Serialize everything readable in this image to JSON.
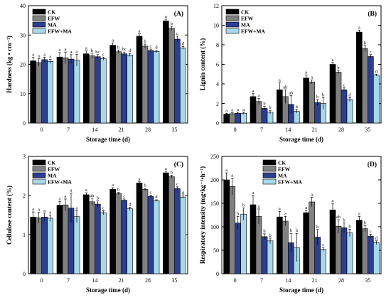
{
  "colors": {
    "CK": "#000000",
    "EFW": "#808080",
    "MA": "#2c3f8f",
    "EFW+MA": "#a8d8ea"
  },
  "chart_data": [
    {
      "type": "bar",
      "panel": "(A)",
      "legend_position": "top-left",
      "xlabel": "Storage time (d)",
      "ylabel": "Hardness (kg • cm⁻²)",
      "ylim": [
        0,
        40
      ],
      "yticks": [
        "0",
        "10",
        "20",
        "30",
        "40"
      ],
      "categories": [
        "0",
        "7",
        "14",
        "21",
        "28",
        "35"
      ],
      "series": [
        {
          "name": "CK",
          "values": [
            21.2,
            22.5,
            23.6,
            26.5,
            29.6,
            34.8
          ],
          "errors": [
            1.2,
            1.5,
            1.0,
            0.8,
            0.8,
            0.6
          ],
          "letters": [
            "a",
            "a",
            "a",
            "a",
            "a",
            "a"
          ]
        },
        {
          "name": "EFW",
          "values": [
            20.6,
            22.2,
            22.9,
            24.3,
            26.2,
            32.3
          ],
          "errors": [
            1.3,
            2.0,
            0.9,
            0.6,
            0.7,
            0.7
          ],
          "letters": [
            "a",
            "a",
            "b",
            "b",
            "b",
            "b"
          ]
        },
        {
          "name": "MA",
          "values": [
            21.6,
            21.8,
            22.6,
            23.6,
            24.7,
            28.6
          ],
          "errors": [
            0.8,
            1.5,
            0.7,
            0.6,
            0.5,
            1.0
          ],
          "letters": [
            "a",
            "a",
            "bc",
            "bc",
            "c",
            "c"
          ]
        },
        {
          "name": "EFW+MA",
          "values": [
            21.0,
            21.4,
            21.9,
            23.2,
            24.4,
            25.6
          ],
          "errors": [
            0.7,
            2.0,
            0.5,
            0.5,
            0.4,
            0.5
          ],
          "letters": [
            "a",
            "a",
            "c",
            "d",
            "d",
            "d"
          ]
        }
      ]
    },
    {
      "type": "bar",
      "panel": "(B)",
      "legend_position": "top-left",
      "xlabel": "Storage time (d)",
      "ylabel": "Lignin content (%)",
      "ylim": [
        0,
        12
      ],
      "yticks": [
        "0",
        "2",
        "4",
        "6",
        "8",
        "10",
        "12"
      ],
      "categories": [
        "0",
        "7",
        "14",
        "21",
        "28",
        "35"
      ],
      "series": [
        {
          "name": "CK",
          "values": [
            0.9,
            2.7,
            3.4,
            4.6,
            6.0,
            9.3
          ],
          "errors": [
            0.1,
            0.3,
            0.7,
            0.3,
            0.2,
            0.2
          ],
          "letters": [
            "a",
            "a",
            "a",
            "a",
            "a",
            "a"
          ]
        },
        {
          "name": "EFW",
          "values": [
            0.95,
            2.2,
            2.7,
            4.2,
            5.2,
            7.6
          ],
          "errors": [
            0.1,
            0.3,
            0.7,
            0.2,
            0.2,
            0.3
          ],
          "letters": [
            "a",
            "a",
            "ab",
            "a",
            "b",
            "b"
          ]
        },
        {
          "name": "MA",
          "values": [
            1.0,
            1.5,
            1.9,
            2.1,
            3.4,
            6.8
          ],
          "errors": [
            0.1,
            0.2,
            0.9,
            0.3,
            0.2,
            0.2
          ],
          "letters": [
            "a",
            "b",
            "ab",
            "b",
            "c",
            "c"
          ]
        },
        {
          "name": "EFW+MA",
          "values": [
            1.0,
            1.1,
            1.2,
            2.0,
            2.4,
            4.9
          ],
          "errors": [
            0.1,
            0.2,
            0.2,
            0.6,
            0.2,
            0.1
          ],
          "letters": [
            "a",
            "b",
            "b",
            "b",
            "d",
            "d"
          ]
        }
      ]
    },
    {
      "type": "bar",
      "panel": "(C)",
      "legend_position": "top-left",
      "xlabel": "Storage time (d)",
      "ylabel": "Cellulose content (%)",
      "ylim": [
        0,
        3
      ],
      "yticks": [
        "0",
        "1",
        "2",
        "3"
      ],
      "categories": [
        "0",
        "7",
        "14",
        "21",
        "28",
        "35"
      ],
      "series": [
        {
          "name": "CK",
          "values": [
            1.45,
            1.75,
            2.02,
            2.16,
            2.32,
            2.58
          ],
          "errors": [
            0.13,
            0.1,
            0.05,
            0.04,
            0.03,
            0.04
          ],
          "letters": [
            "a",
            "a",
            "a",
            "a",
            "a",
            "a"
          ]
        },
        {
          "name": "EFW",
          "values": [
            1.43,
            1.76,
            1.84,
            2.05,
            2.16,
            2.48
          ],
          "errors": [
            0.14,
            0.15,
            0.09,
            0.03,
            0.03,
            0.04
          ],
          "letters": [
            "a",
            "a",
            "ab",
            "b",
            "b",
            "b"
          ]
        },
        {
          "name": "MA",
          "values": [
            1.45,
            1.68,
            1.78,
            1.88,
            1.98,
            2.18
          ],
          "errors": [
            0.1,
            0.38,
            0.08,
            0.03,
            0.03,
            0.04
          ],
          "letters": [
            "a",
            "a",
            "b",
            "c",
            "c",
            "c"
          ]
        },
        {
          "name": "EFW+MA",
          "values": [
            1.42,
            1.46,
            1.56,
            1.66,
            1.87,
            1.96
          ],
          "errors": [
            0.08,
            0.15,
            0.05,
            0.04,
            0.02,
            0.03
          ],
          "letters": [
            "a",
            "a",
            "c",
            "d",
            "d",
            "d"
          ]
        }
      ]
    },
    {
      "type": "bar",
      "panel": "(D)",
      "legend_position": "top-right",
      "xlabel": "Storage time (d)",
      "ylabel": "Respiratory intensity (mg•kg⁻¹•h⁻¹)",
      "ylim": [
        0,
        250
      ],
      "yticks": [
        "0",
        "50",
        "100",
        "150",
        "200",
        "250"
      ],
      "categories": [
        "0",
        "7",
        "14",
        "21",
        "28",
        "35"
      ],
      "series": [
        {
          "name": "CK",
          "values": [
            200,
            147,
            121,
            130,
            136,
            114
          ],
          "errors": [
            15,
            20,
            12,
            5,
            14,
            8
          ],
          "letters": [
            "a",
            "a",
            "a",
            "a",
            "a",
            "a"
          ]
        },
        {
          "name": "EFW",
          "values": [
            186,
            122,
            112,
            153,
            101,
            96
          ],
          "errors": [
            18,
            16,
            10,
            10,
            14,
            6
          ],
          "letters": [
            "a",
            "a",
            "a",
            "a",
            "ab",
            "b"
          ]
        },
        {
          "name": "MA",
          "values": [
            108,
            79,
            66,
            78,
            98,
            80
          ],
          "errors": [
            14,
            6,
            20,
            16,
            10,
            4
          ],
          "letters": [
            "b",
            "b",
            "b",
            "b",
            "b",
            "c"
          ]
        },
        {
          "name": "EFW+MA",
          "values": [
            127,
            70,
            56,
            52,
            87,
            66
          ],
          "errors": [
            13,
            6,
            30,
            4,
            8,
            4
          ],
          "letters": [
            "b",
            "b",
            "b",
            "c",
            "b",
            "d"
          ]
        }
      ]
    }
  ]
}
